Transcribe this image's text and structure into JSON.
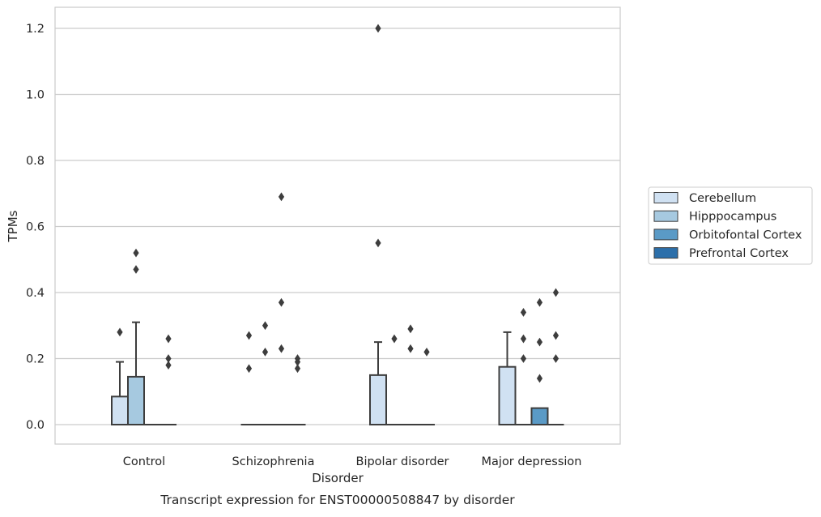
{
  "chart_data": {
    "type": "box",
    "title": "Transcript expression for ENST00000508847 by disorder",
    "xlabel": "Disorder",
    "ylabel": "TPMs",
    "categories": [
      "Control",
      "Schizophrenia",
      "Bipolar disorder",
      "Major depression"
    ],
    "ylim": [
      -0.06,
      1.26
    ],
    "yticks": [
      0.0,
      0.2,
      0.4,
      0.6,
      0.8,
      1.0,
      1.2
    ],
    "ytick_labels": [
      "0.0",
      "0.2",
      "0.4",
      "0.6",
      "0.8",
      "1.0",
      "1.2"
    ],
    "grid": true,
    "legend_position": "right-center",
    "series": [
      {
        "name": "Cerebellum",
        "color": "#d0e1f2",
        "boxes": [
          {
            "q1": 0.0,
            "median": 0.0,
            "q3": 0.085,
            "whisker_low": 0.0,
            "whisker_high": 0.19,
            "outliers": [
              0.28
            ]
          },
          {
            "q1": 0.0,
            "median": 0.0,
            "q3": 0.0,
            "whisker_low": 0.0,
            "whisker_high": 0.0,
            "outliers": [
              0.17,
              0.27
            ]
          },
          {
            "q1": 0.0,
            "median": 0.0,
            "q3": 0.15,
            "whisker_low": 0.0,
            "whisker_high": 0.25,
            "outliers": [
              0.55,
              1.2
            ]
          },
          {
            "q1": 0.0,
            "median": 0.0,
            "q3": 0.175,
            "whisker_low": 0.0,
            "whisker_high": 0.28,
            "outliers": []
          }
        ]
      },
      {
        "name": "Hipppocampus",
        "color": "#a6c9e0",
        "boxes": [
          {
            "q1": 0.0,
            "median": 0.0,
            "q3": 0.145,
            "whisker_low": 0.0,
            "whisker_high": 0.31,
            "outliers": [
              0.47,
              0.52
            ]
          },
          {
            "q1": 0.0,
            "median": 0.0,
            "q3": 0.0,
            "whisker_low": 0.0,
            "whisker_high": 0.0,
            "outliers": [
              0.22,
              0.3
            ]
          },
          {
            "q1": 0.0,
            "median": 0.0,
            "q3": 0.0,
            "whisker_low": 0.0,
            "whisker_high": 0.0,
            "outliers": [
              0.26
            ]
          },
          {
            "q1": 0.0,
            "median": 0.0,
            "q3": 0.0,
            "whisker_low": 0.0,
            "whisker_high": 0.0,
            "outliers": [
              0.2,
              0.26,
              0.34
            ]
          }
        ]
      },
      {
        "name": "Orbitofontal Cortex",
        "color": "#5a9ac6",
        "boxes": [
          {
            "q1": 0.0,
            "median": 0.0,
            "q3": 0.0,
            "whisker_low": 0.0,
            "whisker_high": 0.0,
            "outliers": []
          },
          {
            "q1": 0.0,
            "median": 0.0,
            "q3": 0.0,
            "whisker_low": 0.0,
            "whisker_high": 0.0,
            "outliers": [
              0.23,
              0.37,
              0.69
            ]
          },
          {
            "q1": 0.0,
            "median": 0.0,
            "q3": 0.0,
            "whisker_low": 0.0,
            "whisker_high": 0.0,
            "outliers": [
              0.23,
              0.29
            ]
          },
          {
            "q1": 0.0,
            "median": 0.0,
            "q3": 0.05,
            "whisker_low": 0.0,
            "whisker_high": 0.05,
            "outliers": [
              0.14,
              0.25,
              0.37
            ]
          }
        ]
      },
      {
        "name": "Prefrontal Cortex",
        "color": "#2c6faa",
        "boxes": [
          {
            "q1": 0.0,
            "median": 0.0,
            "q3": 0.0,
            "whisker_low": 0.0,
            "whisker_high": 0.0,
            "outliers": [
              0.18,
              0.2,
              0.26
            ]
          },
          {
            "q1": 0.0,
            "median": 0.0,
            "q3": 0.0,
            "whisker_low": 0.0,
            "whisker_high": 0.0,
            "outliers": [
              0.17,
              0.19,
              0.2
            ]
          },
          {
            "q1": 0.0,
            "median": 0.0,
            "q3": 0.0,
            "whisker_low": 0.0,
            "whisker_high": 0.0,
            "outliers": [
              0.22
            ]
          },
          {
            "q1": 0.0,
            "median": 0.0,
            "q3": 0.0,
            "whisker_low": 0.0,
            "whisker_high": 0.0,
            "outliers": [
              0.2,
              0.27,
              0.4
            ]
          }
        ]
      }
    ]
  }
}
